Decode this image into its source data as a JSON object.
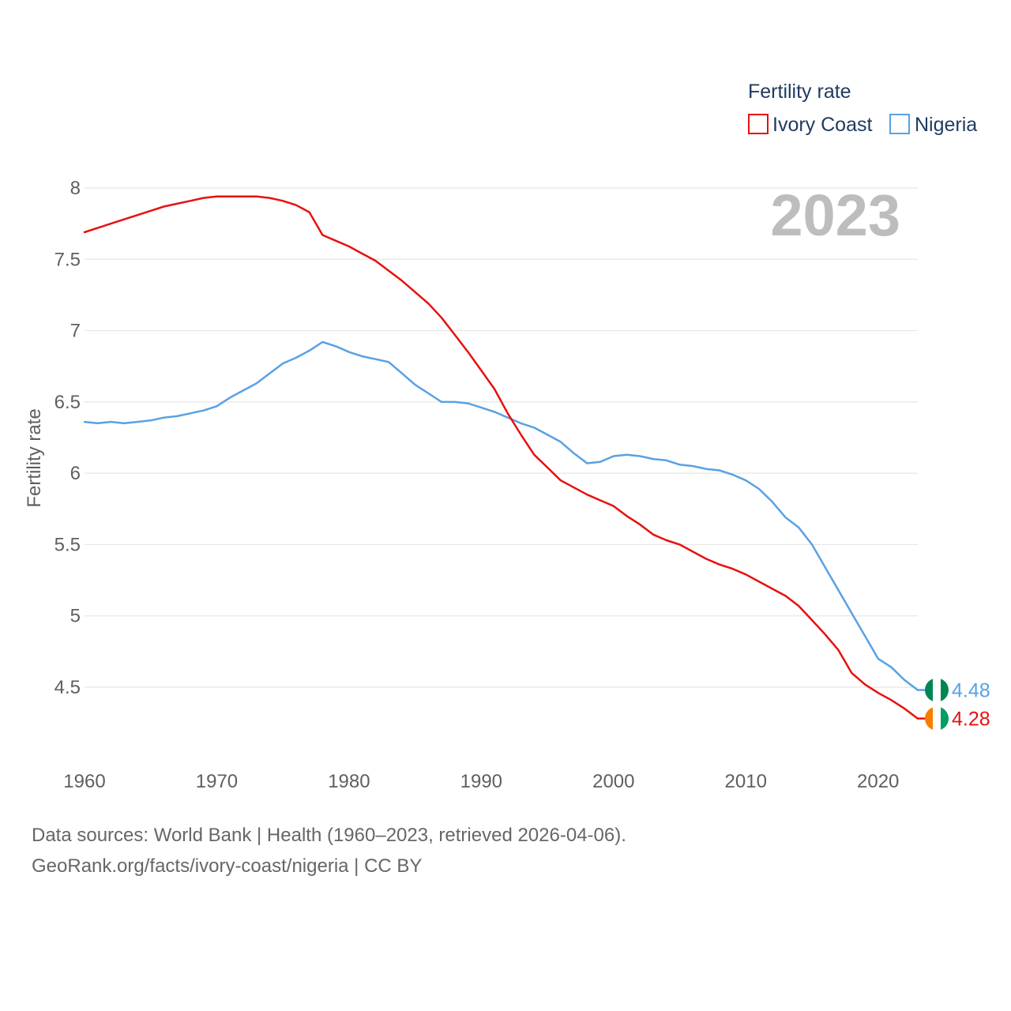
{
  "chart_data": {
    "type": "line",
    "title": "",
    "xlabel": "",
    "ylabel": "Fertility rate",
    "year_label": "2023",
    "legend_title": "Fertility rate",
    "legend_position": "top-right",
    "xlim": [
      1960,
      2023
    ],
    "ylim": [
      4.0,
      8.2
    ],
    "x_ticks": [
      1960,
      1970,
      1980,
      1990,
      2000,
      2010,
      2020
    ],
    "y_ticks": [
      4.5,
      5,
      5.5,
      6,
      6.5,
      7,
      7.5,
      8
    ],
    "x_tick_labels": [
      "1960",
      "1970",
      "1980",
      "1990",
      "2000",
      "2010",
      "2020"
    ],
    "y_tick_labels": [
      "4.5",
      "5",
      "5.5",
      "6",
      "6.5",
      "7",
      "7.5",
      "8"
    ],
    "grid": true,
    "x": [
      1960,
      1961,
      1962,
      1963,
      1964,
      1965,
      1966,
      1967,
      1968,
      1969,
      1970,
      1971,
      1972,
      1973,
      1974,
      1975,
      1976,
      1977,
      1978,
      1979,
      1980,
      1981,
      1982,
      1983,
      1984,
      1985,
      1986,
      1987,
      1988,
      1989,
      1990,
      1991,
      1992,
      1993,
      1994,
      1995,
      1996,
      1997,
      1998,
      1999,
      2000,
      2001,
      2002,
      2003,
      2004,
      2005,
      2006,
      2007,
      2008,
      2009,
      2010,
      2011,
      2012,
      2013,
      2014,
      2015,
      2016,
      2017,
      2018,
      2019,
      2020,
      2021,
      2022,
      2023
    ],
    "series": [
      {
        "name": "Ivory Coast",
        "color": "#e8100f",
        "end_label": "4.28",
        "flag_colors": [
          "#f77f00",
          "#ffffff",
          "#009e60"
        ],
        "values": [
          7.69,
          7.72,
          7.75,
          7.78,
          7.81,
          7.84,
          7.87,
          7.89,
          7.91,
          7.93,
          7.94,
          7.94,
          7.94,
          7.94,
          7.93,
          7.91,
          7.88,
          7.83,
          7.67,
          7.63,
          7.59,
          7.54,
          7.49,
          7.42,
          7.35,
          7.27,
          7.19,
          7.09,
          6.97,
          6.85,
          6.72,
          6.59,
          6.42,
          6.27,
          6.13,
          6.04,
          5.95,
          5.9,
          5.85,
          5.81,
          5.77,
          5.7,
          5.64,
          5.57,
          5.53,
          5.5,
          5.45,
          5.4,
          5.36,
          5.33,
          5.29,
          5.24,
          5.19,
          5.14,
          5.07,
          4.97,
          4.87,
          4.76,
          4.6,
          4.52,
          4.46,
          4.41,
          4.35,
          4.28
        ]
      },
      {
        "name": "Nigeria",
        "color": "#5aa1e3",
        "end_label": "4.48",
        "flag_colors": [
          "#008751",
          "#ffffff",
          "#008751"
        ],
        "values": [
          6.36,
          6.35,
          6.36,
          6.35,
          6.36,
          6.37,
          6.39,
          6.4,
          6.42,
          6.44,
          6.47,
          6.53,
          6.58,
          6.63,
          6.7,
          6.77,
          6.81,
          6.86,
          6.92,
          6.89,
          6.85,
          6.82,
          6.8,
          6.78,
          6.7,
          6.62,
          6.56,
          6.5,
          6.5,
          6.49,
          6.46,
          6.43,
          6.39,
          6.35,
          6.32,
          6.27,
          6.22,
          6.14,
          6.07,
          6.08,
          6.12,
          6.13,
          6.12,
          6.1,
          6.09,
          6.06,
          6.05,
          6.03,
          6.02,
          5.99,
          5.95,
          5.89,
          5.8,
          5.69,
          5.62,
          5.5,
          5.34,
          5.18,
          5.02,
          4.86,
          4.7,
          4.64,
          4.55,
          4.48
        ]
      }
    ]
  },
  "footer": {
    "line1": "Data sources: World Bank | Health (1960–2023, retrieved 2026-04-06).",
    "line2": "GeoRank.org/facts/ivory-coast/nigeria | CC BY"
  }
}
